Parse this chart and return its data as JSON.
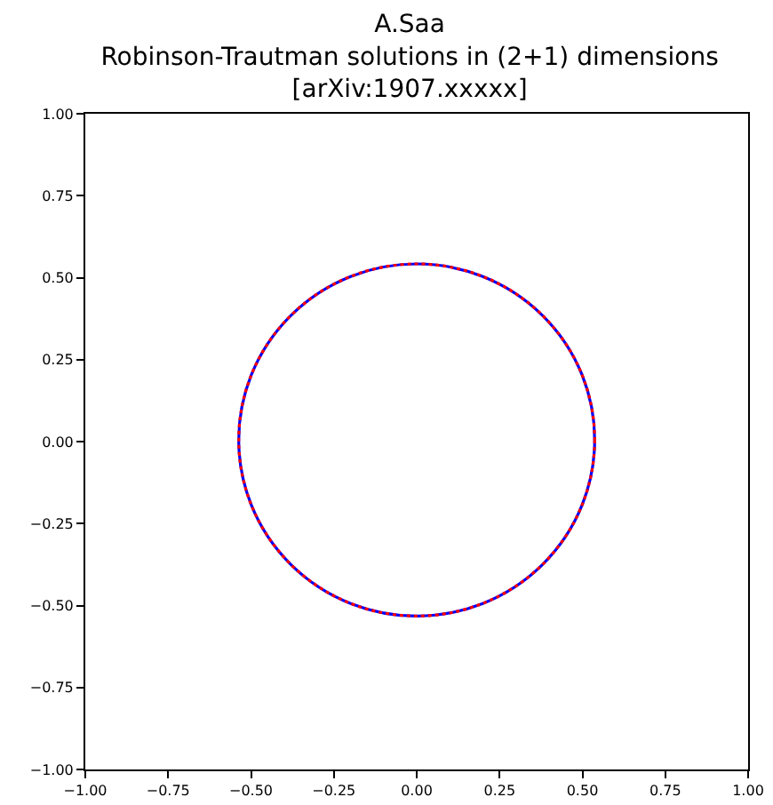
{
  "chart_data": {
    "type": "line",
    "title": "A.Saa\nRobinson-Trautman solutions in (2+1) dimensions\n[arXiv:1907.xxxxx]",
    "xlim": [
      -1,
      1
    ],
    "ylim": [
      -1,
      1
    ],
    "xticks": [
      {
        "value": -1,
        "label": "−1.00"
      },
      {
        "value": -0.75,
        "label": "−0.75"
      },
      {
        "value": -0.5,
        "label": "−0.50"
      },
      {
        "value": -0.25,
        "label": "−0.25"
      },
      {
        "value": 0,
        "label": "0.00"
      },
      {
        "value": 0.25,
        "label": "0.25"
      },
      {
        "value": 0.5,
        "label": "0.50"
      },
      {
        "value": 0.75,
        "label": "0.75"
      },
      {
        "value": 1,
        "label": "1.00"
      }
    ],
    "yticks": [
      {
        "value": -1,
        "label": "−1.00"
      },
      {
        "value": -0.75,
        "label": "−0.75"
      },
      {
        "value": -0.5,
        "label": "−0.50"
      },
      {
        "value": -0.25,
        "label": "−0.25"
      },
      {
        "value": 0,
        "label": "0.00"
      },
      {
        "value": 0.25,
        "label": "0.25"
      },
      {
        "value": 0.5,
        "label": "0.50"
      },
      {
        "value": 0.75,
        "label": "0.75"
      },
      {
        "value": 1,
        "label": "1.00"
      }
    ],
    "grid": false
  }
}
